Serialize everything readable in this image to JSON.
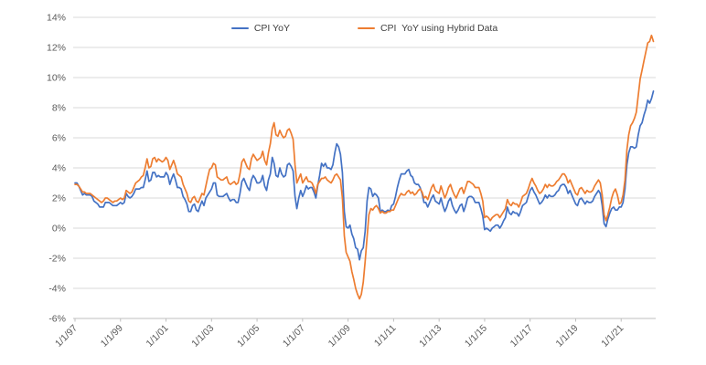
{
  "legend": {
    "items": [
      {
        "label": "CPI YoY",
        "color": "#4472C4"
      },
      {
        "label": "CPI  YoY using Hybrid Data",
        "color": "#ED7D31"
      }
    ]
  },
  "style": {
    "grid_color": "#D9D9D9",
    "axis_line_color": "#BFBFBF",
    "axis_label_color": "#595959",
    "background": "#FFFFFF"
  },
  "chart_data": {
    "type": "line",
    "frequency": "monthly",
    "x_start": "1/1/97",
    "x_end": "6/1/22",
    "x_tick_labels": [
      "1/1/97",
      "1/1/99",
      "1/1/01",
      "1/1/03",
      "1/1/05",
      "1/1/07",
      "1/1/09",
      "1/1/11",
      "1/1/13",
      "1/1/15",
      "1/1/17",
      "1/1/19",
      "1/1/21"
    ],
    "x_tick_interval_months": 24,
    "ylim": [
      -6,
      14
    ],
    "y_tick_step": 2,
    "y_tick_suffix": "%",
    "grid": true,
    "legend_position": "top-center",
    "series": [
      {
        "name": "CPI YoY",
        "color": "#4472C4",
        "values": [
          3.0,
          3.0,
          2.8,
          2.5,
          2.2,
          2.3,
          2.2,
          2.2,
          2.2,
          2.1,
          1.8,
          1.7,
          1.6,
          1.4,
          1.4,
          1.4,
          1.7,
          1.7,
          1.7,
          1.6,
          1.5,
          1.5,
          1.5,
          1.6,
          1.7,
          1.6,
          1.7,
          2.3,
          2.1,
          2.0,
          2.1,
          2.3,
          2.6,
          2.6,
          2.6,
          2.7,
          2.7,
          3.2,
          3.8,
          3.1,
          3.2,
          3.7,
          3.7,
          3.4,
          3.5,
          3.4,
          3.4,
          3.4,
          3.7,
          3.5,
          2.9,
          3.3,
          3.6,
          3.2,
          2.7,
          2.7,
          2.6,
          2.1,
          1.9,
          1.6,
          1.1,
          1.1,
          1.5,
          1.6,
          1.2,
          1.1,
          1.5,
          1.8,
          1.5,
          2.0,
          2.2,
          2.4,
          2.6,
          3.0,
          3.0,
          2.2,
          2.1,
          2.1,
          2.1,
          2.2,
          2.3,
          2.0,
          1.8,
          1.9,
          1.9,
          1.7,
          1.7,
          2.3,
          3.1,
          3.3,
          3.0,
          2.7,
          2.5,
          3.2,
          3.5,
          3.3,
          3.0,
          3.0,
          3.1,
          3.5,
          2.8,
          2.5,
          3.2,
          3.6,
          4.7,
          4.3,
          3.5,
          3.4,
          4.0,
          3.6,
          3.4,
          3.5,
          4.2,
          4.3,
          4.1,
          3.8,
          2.1,
          1.3,
          2.0,
          2.5,
          2.1,
          2.4,
          2.8,
          2.6,
          2.7,
          2.7,
          2.4,
          2.0,
          2.8,
          3.5,
          4.3,
          4.1,
          4.3,
          4.0,
          4.0,
          3.9,
          4.2,
          5.0,
          5.6,
          5.4,
          4.9,
          3.7,
          1.1,
          0.1,
          0.0,
          0.2,
          -0.4,
          -0.7,
          -1.3,
          -1.4,
          -2.1,
          -1.5,
          -1.3,
          -0.2,
          1.8,
          2.7,
          2.6,
          2.1,
          2.3,
          2.2,
          2.0,
          1.1,
          1.2,
          1.1,
          1.1,
          1.2,
          1.1,
          1.5,
          1.6,
          2.1,
          2.7,
          3.2,
          3.6,
          3.6,
          3.6,
          3.8,
          3.9,
          3.5,
          3.4,
          3.0,
          2.9,
          2.9,
          2.7,
          2.3,
          1.7,
          1.7,
          1.4,
          1.7,
          2.0,
          2.2,
          1.8,
          1.7,
          1.6,
          2.0,
          1.5,
          1.1,
          1.4,
          1.8,
          2.0,
          1.5,
          1.2,
          1.0,
          1.2,
          1.5,
          1.6,
          1.1,
          1.5,
          2.0,
          2.1,
          2.1,
          2.0,
          1.7,
          1.7,
          1.7,
          1.3,
          0.8,
          -0.1,
          0.0,
          -0.1,
          -0.2,
          0.0,
          0.1,
          0.2,
          0.2,
          0.0,
          0.2,
          0.5,
          0.7,
          1.4,
          1.0,
          0.9,
          1.1,
          1.0,
          1.0,
          0.8,
          1.1,
          1.5,
          1.6,
          1.7,
          2.1,
          2.5,
          2.7,
          2.4,
          2.2,
          1.9,
          1.6,
          1.7,
          1.9,
          2.2,
          2.0,
          2.2,
          2.1,
          2.1,
          2.2,
          2.4,
          2.5,
          2.8,
          2.9,
          2.9,
          2.7,
          2.3,
          2.5,
          2.2,
          1.9,
          1.6,
          1.5,
          1.9,
          2.0,
          1.8,
          1.6,
          1.8,
          1.7,
          1.7,
          1.8,
          2.1,
          2.3,
          2.5,
          2.3,
          1.5,
          0.3,
          0.1,
          0.6,
          1.0,
          1.3,
          1.4,
          1.2,
          1.2,
          1.4,
          1.4,
          1.7,
          2.6,
          4.2,
          5.0,
          5.4,
          5.4,
          5.3,
          5.4,
          6.2,
          6.8,
          7.0,
          7.5,
          7.9,
          8.5,
          8.3,
          8.6,
          9.1
        ]
      },
      {
        "name": "CPI  YoY using Hybrid Data",
        "color": "#ED7D31",
        "values": [
          2.9,
          2.9,
          2.8,
          2.6,
          2.4,
          2.4,
          2.3,
          2.3,
          2.3,
          2.2,
          2.1,
          2.0,
          1.9,
          1.8,
          1.7,
          1.8,
          2.0,
          2.0,
          1.9,
          1.8,
          1.7,
          1.8,
          1.8,
          1.9,
          2.0,
          1.9,
          2.0,
          2.5,
          2.4,
          2.3,
          2.4,
          2.7,
          3.0,
          3.1,
          3.2,
          3.4,
          3.5,
          4.0,
          4.6,
          4.0,
          4.1,
          4.6,
          4.7,
          4.4,
          4.6,
          4.5,
          4.4,
          4.5,
          4.7,
          4.5,
          3.9,
          4.2,
          4.5,
          4.1,
          3.6,
          3.5,
          3.4,
          2.9,
          2.6,
          2.3,
          1.8,
          1.7,
          2.0,
          2.1,
          1.8,
          1.7,
          2.0,
          2.3,
          2.2,
          2.8,
          3.4,
          3.9,
          4.0,
          4.3,
          4.2,
          3.4,
          3.3,
          3.2,
          3.2,
          3.3,
          3.4,
          3.0,
          2.9,
          3.0,
          3.1,
          2.9,
          3.0,
          3.6,
          4.4,
          4.6,
          4.3,
          4.0,
          3.9,
          4.6,
          4.9,
          4.7,
          4.5,
          4.6,
          4.7,
          5.1,
          4.5,
          4.2,
          5.0,
          5.6,
          6.6,
          7.0,
          6.2,
          6.1,
          6.5,
          6.2,
          6.0,
          6.1,
          6.5,
          6.6,
          6.3,
          5.9,
          4.2,
          3.0,
          3.3,
          3.6,
          3.0,
          3.2,
          3.4,
          3.1,
          3.1,
          3.0,
          2.7,
          2.3,
          2.9,
          3.1,
          3.3,
          3.3,
          3.4,
          3.2,
          3.1,
          3.0,
          3.2,
          3.5,
          3.6,
          3.4,
          3.2,
          2.0,
          -0.5,
          -1.6,
          -1.9,
          -2.2,
          -2.9,
          -3.4,
          -4.0,
          -4.4,
          -4.7,
          -4.4,
          -3.6,
          -2.2,
          -0.6,
          0.9,
          1.3,
          1.2,
          1.4,
          1.5,
          1.3,
          1.0,
          1.1,
          1.0,
          1.0,
          1.1,
          1.1,
          1.2,
          1.2,
          1.5,
          1.8,
          2.1,
          2.3,
          2.2,
          2.2,
          2.4,
          2.5,
          2.3,
          2.4,
          2.2,
          2.3,
          2.5,
          2.6,
          2.4,
          2.0,
          2.1,
          1.9,
          2.3,
          2.7,
          2.9,
          2.5,
          2.4,
          2.3,
          2.8,
          2.4,
          2.0,
          2.3,
          2.7,
          2.9,
          2.5,
          2.2,
          2.0,
          2.3,
          2.6,
          2.7,
          2.3,
          2.7,
          3.1,
          3.1,
          3.0,
          2.9,
          2.7,
          2.7,
          2.7,
          2.3,
          1.8,
          0.7,
          0.8,
          0.7,
          0.5,
          0.7,
          0.8,
          0.9,
          0.9,
          0.7,
          0.9,
          1.1,
          1.3,
          1.9,
          1.6,
          1.5,
          1.7,
          1.6,
          1.6,
          1.4,
          1.7,
          2.1,
          2.2,
          2.3,
          2.6,
          3.0,
          3.3,
          3.0,
          2.8,
          2.5,
          2.3,
          2.4,
          2.6,
          2.9,
          2.7,
          2.9,
          2.8,
          2.8,
          2.9,
          3.1,
          3.2,
          3.4,
          3.6,
          3.6,
          3.4,
          3.0,
          3.2,
          2.9,
          2.6,
          2.3,
          2.2,
          2.6,
          2.7,
          2.5,
          2.3,
          2.5,
          2.4,
          2.4,
          2.5,
          2.8,
          3.0,
          3.2,
          3.0,
          2.2,
          0.9,
          0.5,
          0.9,
          1.4,
          2.0,
          2.4,
          2.6,
          2.2,
          1.6,
          1.7,
          2.2,
          3.2,
          5.2,
          6.2,
          6.8,
          7.0,
          7.3,
          7.7,
          8.8,
          9.9,
          10.5,
          11.1,
          11.7,
          12.3,
          12.4,
          12.8,
          12.4
        ]
      }
    ]
  }
}
